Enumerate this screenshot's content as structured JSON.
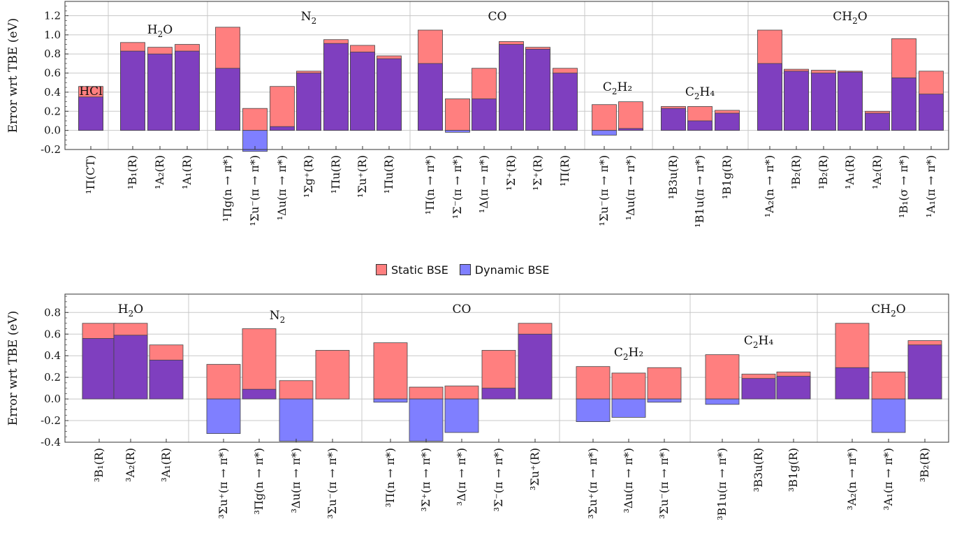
{
  "colors": {
    "static": "#ff7f7f",
    "dynamic": "#7f7fff",
    "overlap": "#7f3fbf",
    "grid": "#c8c8c8"
  },
  "legend": {
    "static_label": "Static BSE",
    "dynamic_label": "Dynamic BSE"
  },
  "chart_data": [
    {
      "type": "bar",
      "ylabel": "Error wrt TBE (eV)",
      "ylim": [
        -0.2,
        1.35
      ],
      "yticks": [
        "-0.2",
        "0.0",
        "0.2",
        "0.4",
        "0.6",
        "0.8",
        "1.0",
        "1.2"
      ],
      "series_names": [
        "Static BSE",
        "Dynamic BSE"
      ],
      "molecules": [
        {
          "name": "HCl",
          "sub": "",
          "bars": [
            {
              "label": "¹Π(CT)",
              "static": 0.46,
              "dynamic": 0.35
            }
          ]
        },
        {
          "name": "H",
          "sub": "2",
          "name_post": "O",
          "bars": [
            {
              "label": "¹B₁(R)",
              "static": 0.92,
              "dynamic": 0.83
            },
            {
              "label": "¹A₂(R)",
              "static": 0.87,
              "dynamic": 0.8
            },
            {
              "label": "¹A₁(R)",
              "static": 0.9,
              "dynamic": 0.83
            }
          ]
        },
        {
          "name": "N",
          "sub": "2",
          "name_post": "",
          "bars": [
            {
              "label": "¹Πg(n → π*)",
              "static": 1.08,
              "dynamic": 0.65
            },
            {
              "label": "¹Σu⁻(π → π*)",
              "static": 0.23,
              "dynamic": -0.22
            },
            {
              "label": "¹Δu(π → π*)",
              "static": 0.46,
              "dynamic": 0.04
            },
            {
              "label": "¹Σg⁺(R)",
              "static": 0.62,
              "dynamic": 0.6
            },
            {
              "label": "¹Πu(R)",
              "static": 0.95,
              "dynamic": 0.91
            },
            {
              "label": "¹Σu⁺(R)",
              "static": 0.89,
              "dynamic": 0.82
            },
            {
              "label": "¹Πu(R)",
              "static": 0.78,
              "dynamic": 0.75
            }
          ]
        },
        {
          "name": "CO",
          "sub": "",
          "bars": [
            {
              "label": "¹Π(n → π*)",
              "static": 1.05,
              "dynamic": 0.7
            },
            {
              "label": "¹Σ⁻(π → π*)",
              "static": 0.33,
              "dynamic": -0.02
            },
            {
              "label": "¹Δ(π → π*)",
              "static": 0.65,
              "dynamic": 0.33
            },
            {
              "label": "¹Σ⁺(R)",
              "static": 0.93,
              "dynamic": 0.9
            },
            {
              "label": "¹Σ⁺(R)",
              "static": 0.87,
              "dynamic": 0.85
            },
            {
              "label": "¹Π(R)",
              "static": 0.65,
              "dynamic": 0.6
            }
          ]
        },
        {
          "name": "C",
          "sub": "2",
          "name_post": "H₂",
          "bars": [
            {
              "label": "¹Σu⁻(π → π*)",
              "static": 0.27,
              "dynamic": -0.05
            },
            {
              "label": "¹Δu(π → π*)",
              "static": 0.3,
              "dynamic": 0.02
            }
          ]
        },
        {
          "name": "C",
          "sub": "2",
          "name_post": "H₄",
          "bars": [
            {
              "label": "¹B3u(R)",
              "static": 0.25,
              "dynamic": 0.23
            },
            {
              "label": "¹B1u(π → π*)",
              "static": 0.25,
              "dynamic": 0.1
            },
            {
              "label": "¹B1g(R)",
              "static": 0.21,
              "dynamic": 0.18
            }
          ]
        },
        {
          "name": "CH",
          "sub": "2",
          "name_post": "O",
          "bars": [
            {
              "label": "¹A₂(n → π*)",
              "static": 1.05,
              "dynamic": 0.7
            },
            {
              "label": "¹B₂(R)",
              "static": 0.64,
              "dynamic": 0.62
            },
            {
              "label": "¹B₂(R)",
              "static": 0.63,
              "dynamic": 0.6
            },
            {
              "label": "¹A₁(R)",
              "static": 0.62,
              "dynamic": 0.61
            },
            {
              "label": "¹A₂(R)",
              "static": 0.2,
              "dynamic": 0.18
            },
            {
              "label": "¹B₁(σ → π*)",
              "static": 0.96,
              "dynamic": 0.55
            },
            {
              "label": "¹A₁(π → π*)",
              "static": 0.62,
              "dynamic": 0.38
            }
          ]
        }
      ]
    },
    {
      "type": "bar",
      "ylabel": "Error wrt TBE (eV)",
      "ylim": [
        -0.4,
        0.97
      ],
      "yticks": [
        "-0.4",
        "-0.2",
        "0.0",
        "0.2",
        "0.4",
        "0.6",
        "0.8"
      ],
      "series_names": [
        "Static BSE",
        "Dynamic BSE"
      ],
      "molecules": [
        {
          "name": "H",
          "sub": "2",
          "name_post": "O",
          "bars": [
            {
              "label": "³B₁(R)",
              "static": 0.7,
              "dynamic": 0.56
            },
            {
              "label": "³A₂(R)",
              "static": 0.7,
              "dynamic": 0.59
            },
            {
              "label": "³A₁(R)",
              "static": 0.5,
              "dynamic": 0.36
            }
          ]
        },
        {
          "name": "N",
          "sub": "2",
          "name_post": "",
          "bars": [
            {
              "label": "³Σu⁺(π → π*)",
              "static": 0.32,
              "dynamic": -0.32
            },
            {
              "label": "³Πg(n → π*)",
              "static": 0.65,
              "dynamic": 0.09
            },
            {
              "label": "³Δu(π → π*)",
              "static": 0.17,
              "dynamic": -0.39
            },
            {
              "label": "³Σu⁻(π → π*)",
              "static": 0.45,
              "dynamic": 0.0
            }
          ]
        },
        {
          "name": "CO",
          "sub": "",
          "bars": [
            {
              "label": "³Π(n → π*)",
              "static": 0.52,
              "dynamic": -0.03
            },
            {
              "label": "³Σ⁺(π → π*)",
              "static": 0.11,
              "dynamic": -0.39
            },
            {
              "label": "³Δ(π → π*)",
              "static": 0.12,
              "dynamic": -0.31
            },
            {
              "label": "³Σ⁻(π → π*)",
              "static": 0.45,
              "dynamic": 0.1
            },
            {
              "label": "³Σu⁺(R)",
              "static": 0.7,
              "dynamic": 0.6
            }
          ]
        },
        {
          "name": "C",
          "sub": "2",
          "name_post": "H₂",
          "bars": [
            {
              "label": "³Σu⁺(π → π*)",
              "static": 0.3,
              "dynamic": -0.21
            },
            {
              "label": "³Δu(π → π*)",
              "static": 0.24,
              "dynamic": -0.17
            },
            {
              "label": "³Σu⁻(π → π*)",
              "static": 0.29,
              "dynamic": -0.03
            }
          ]
        },
        {
          "name": "C",
          "sub": "2",
          "name_post": "H₄",
          "bars": [
            {
              "label": "³B1u(π → π*)",
              "static": 0.41,
              "dynamic": -0.05
            },
            {
              "label": "³B3u(R)",
              "static": 0.23,
              "dynamic": 0.19
            },
            {
              "label": "³B1g(R)",
              "static": 0.25,
              "dynamic": 0.21
            }
          ]
        },
        {
          "name": "CH",
          "sub": "2",
          "name_post": "O",
          "bars": [
            {
              "label": "³A₂(n → π*)",
              "static": 0.7,
              "dynamic": 0.29
            },
            {
              "label": "³A₁(π → π*)",
              "static": 0.25,
              "dynamic": -0.31
            },
            {
              "label": "³B₂(R)",
              "static": 0.54,
              "dynamic": 0.5
            }
          ]
        }
      ]
    }
  ]
}
